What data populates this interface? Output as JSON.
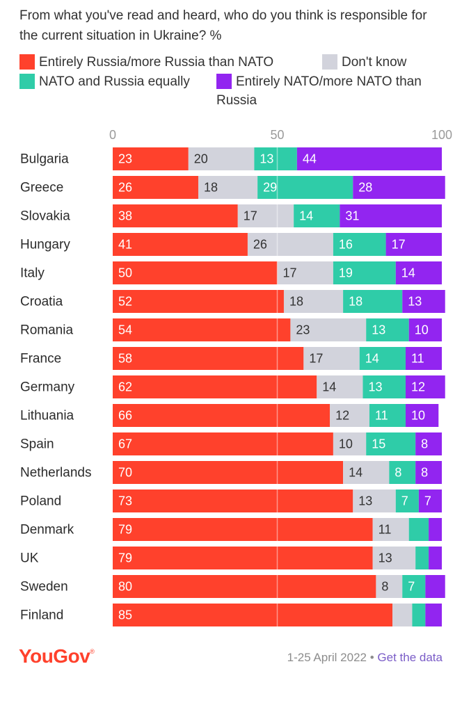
{
  "chart_data": {
    "type": "bar",
    "orientation": "horizontal",
    "stacked": true,
    "title": "From what you've read and heard, who do you think is responsible for the current situation in Ukraine? %",
    "categories": [
      "Bulgaria",
      "Greece",
      "Slovakia",
      "Hungary",
      "Italy",
      "Croatia",
      "Romania",
      "France",
      "Germany",
      "Lithuania",
      "Spain",
      "Netherlands",
      "Poland",
      "Denmark",
      "UK",
      "Sweden",
      "Finland"
    ],
    "series": [
      {
        "name": "Entirely Russia/more Russia than NATO",
        "color": "#ff412c",
        "values": [
          23,
          26,
          38,
          41,
          50,
          52,
          54,
          58,
          62,
          66,
          67,
          70,
          73,
          79,
          79,
          80,
          85
        ],
        "labels": [
          "23",
          "26",
          "38",
          "41",
          "50",
          "52",
          "54",
          "58",
          "62",
          "66",
          "67",
          "70",
          "73",
          "79",
          "79",
          "80",
          "85"
        ]
      },
      {
        "name": "Don't know",
        "color": "#d2d3dc",
        "values": [
          20,
          18,
          17,
          26,
          17,
          18,
          23,
          17,
          14,
          12,
          10,
          14,
          13,
          11,
          13,
          8,
          6
        ],
        "labels": [
          "20",
          "18",
          "17",
          "26",
          "17",
          "18",
          "23",
          "17",
          "14",
          "12",
          "10",
          "14",
          "13",
          "11",
          "13",
          "8",
          ""
        ]
      },
      {
        "name": "NATO and Russia equally",
        "color": "#2fcca8",
        "values": [
          13,
          29,
          14,
          16,
          19,
          18,
          13,
          14,
          13,
          11,
          15,
          8,
          7,
          6,
          4,
          7,
          4
        ],
        "labels": [
          "13",
          "29",
          "14",
          "16",
          "19",
          "18",
          "13",
          "14",
          "13",
          "11",
          "15",
          "8",
          "7",
          "",
          "",
          "7",
          ""
        ]
      },
      {
        "name": "Entirely NATO/more NATO than Russia",
        "color": "#9225f0",
        "values": [
          44,
          28,
          31,
          17,
          14,
          13,
          10,
          11,
          12,
          10,
          8,
          8,
          7,
          4,
          4,
          6,
          5
        ],
        "labels": [
          "44",
          "28",
          "31",
          "17",
          "14",
          "13",
          "10",
          "11",
          "12",
          "10",
          "8",
          "8",
          "7",
          "",
          "",
          "",
          ""
        ]
      }
    ],
    "xlim": [
      0,
      100
    ],
    "xticks": [
      "0",
      "50",
      "100"
    ],
    "grid": true,
    "legend_position": "top"
  },
  "legend": {
    "items": [
      {
        "label": "Entirely Russia/more Russia than NATO",
        "color": "#ff412c"
      },
      {
        "label": "Don't know",
        "color": "#d2d3dc"
      },
      {
        "label": "NATO and Russia equally",
        "color": "#2fcca8"
      },
      {
        "label": "Entirely NATO/more NATO than",
        "label2": "Russia",
        "color": "#9225f0"
      }
    ]
  },
  "footer": {
    "brand": "YouGov",
    "brand_mark": "®",
    "date": "1-25 April 2022",
    "separator": "•",
    "link": "Get the data"
  }
}
